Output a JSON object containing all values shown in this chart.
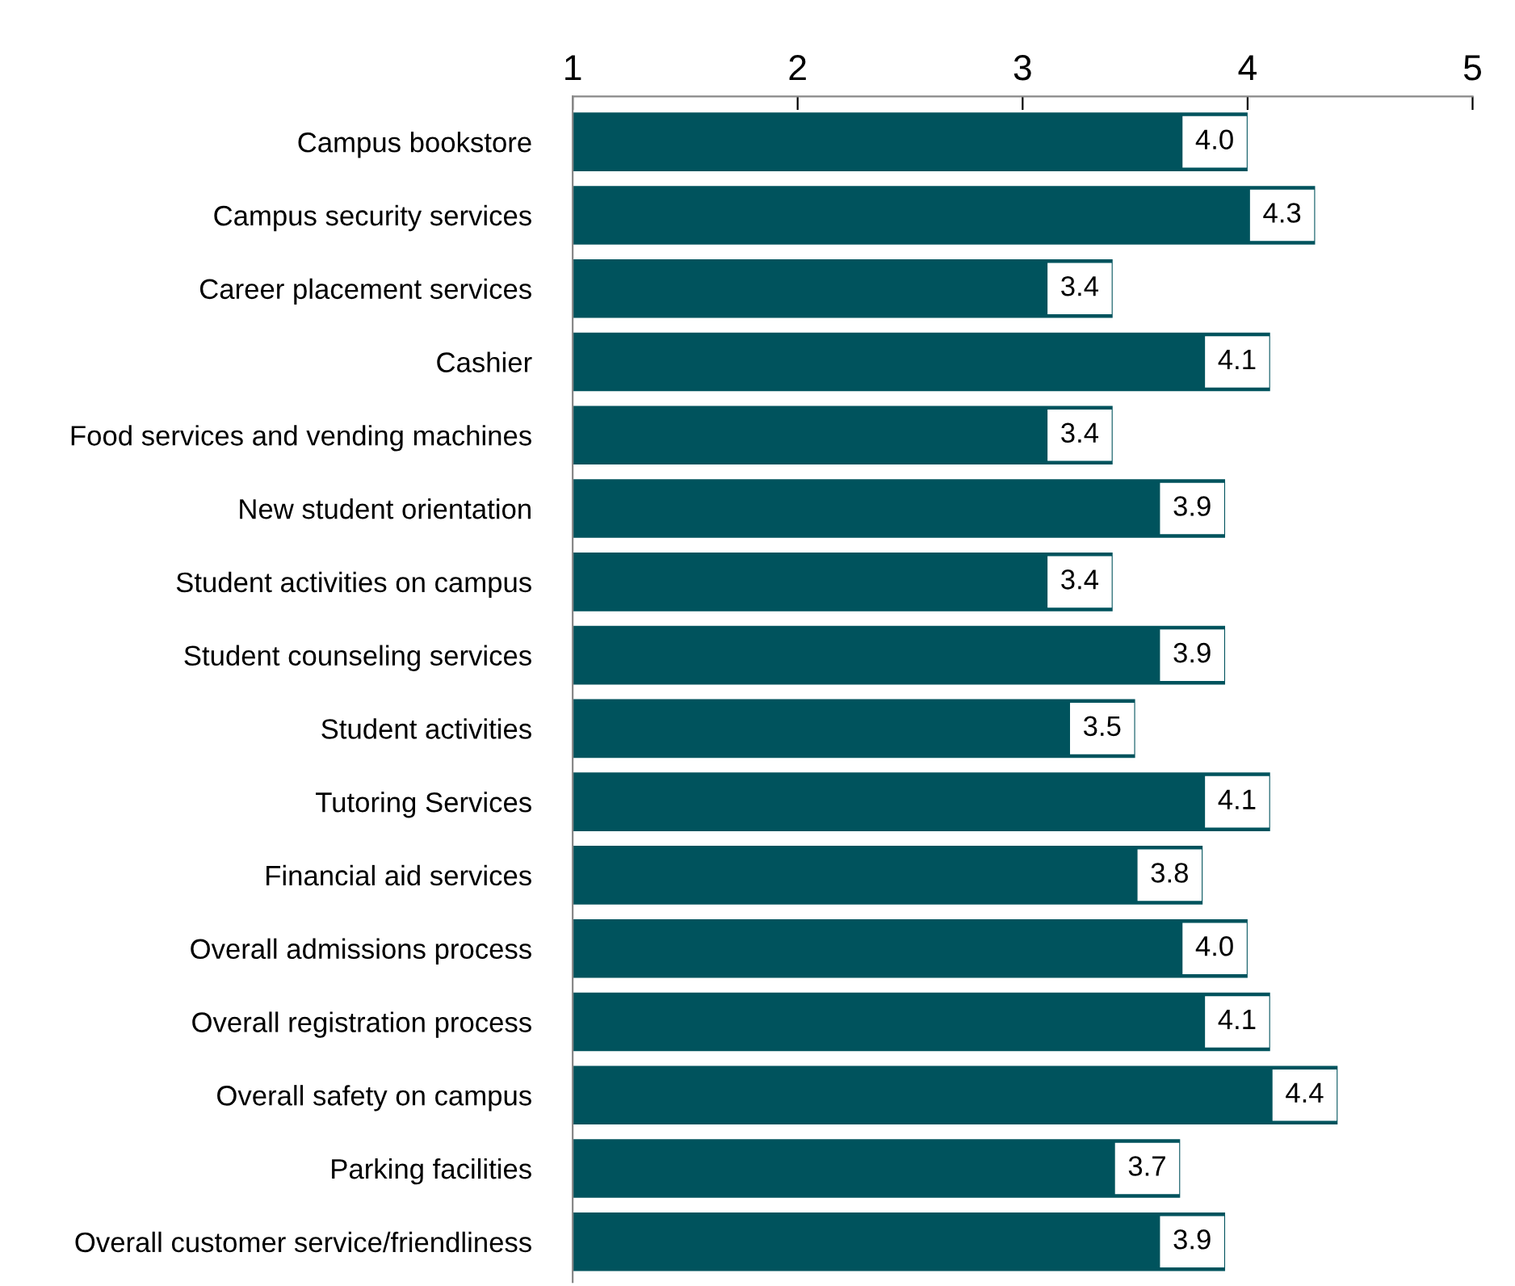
{
  "chart_data": {
    "type": "bar",
    "orientation": "horizontal",
    "categories": [
      "Campus bookstore",
      "Campus security services",
      "Career placement services",
      "Cashier",
      "Food services and vending machines",
      "New student orientation",
      "Student activities on campus",
      "Student counseling services",
      "Student activities",
      "Tutoring Services",
      "Financial aid services",
      "Overall admissions process",
      "Overall registration process",
      "Overall safety on campus",
      "Parking facilities",
      "Overall customer service/friendliness"
    ],
    "values": [
      4.0,
      4.3,
      3.4,
      4.1,
      3.4,
      3.9,
      3.4,
      3.9,
      3.5,
      4.1,
      3.8,
      4.0,
      4.1,
      4.4,
      3.7,
      3.9
    ],
    "value_labels": [
      "4.0",
      "4.3",
      "3.4",
      "4.1",
      "3.4",
      "3.9",
      "3.4",
      "3.9",
      "3.5",
      "4.1",
      "3.8",
      "4.0",
      "4.1",
      "4.4",
      "3.7",
      "3.9"
    ],
    "color": "#00535d",
    "xlim": [
      1,
      5
    ],
    "xticks": [
      1,
      2,
      3,
      4,
      5
    ],
    "grid": false,
    "legend": false
  }
}
